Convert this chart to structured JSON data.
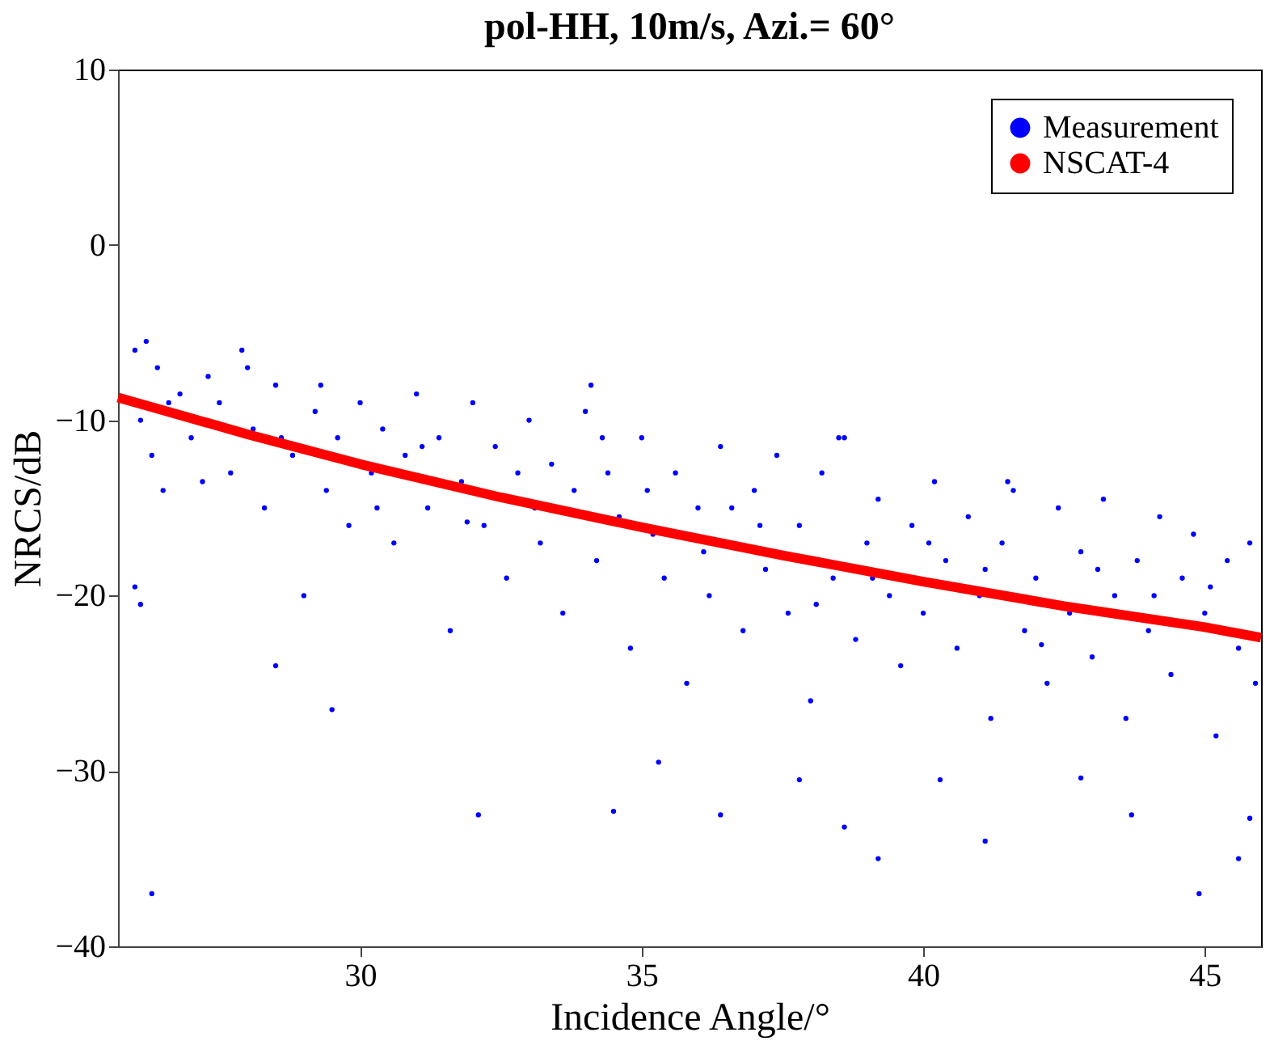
{
  "chart_data": {
    "type": "scatter",
    "title": "pol-HH,  10m/s,  Azi.= 60°",
    "xlabel": "Incidence Angle/°",
    "ylabel": "NRCS/dB",
    "xlim": [
      25.7,
      46
    ],
    "ylim": [
      -40,
      10
    ],
    "xticks": [
      30,
      35,
      40,
      45
    ],
    "yticks": [
      -40,
      -30,
      -20,
      -10,
      0,
      10
    ],
    "grid": false,
    "legend": "top right",
    "series": [
      {
        "name": "Measurement",
        "marker": "circle",
        "color": "#0000ff",
        "x": [
          26.0,
          26.2,
          26.4,
          26.1,
          26.3,
          26.5,
          26.8,
          27.0,
          27.3,
          27.5,
          27.7,
          27.9,
          28.1,
          28.3,
          28.5,
          28.8,
          29.0,
          29.2,
          29.4,
          29.6,
          29.8,
          30.0,
          30.2,
          30.4,
          30.6,
          30.8,
          31.0,
          31.2,
          31.4,
          31.6,
          31.8,
          32.0,
          32.2,
          32.4,
          32.6,
          32.8,
          33.0,
          33.2,
          33.4,
          33.6,
          33.8,
          34.0,
          34.2,
          34.4,
          34.6,
          34.8,
          35.0,
          35.2,
          35.4,
          35.6,
          35.8,
          36.0,
          36.2,
          36.4,
          36.6,
          36.8,
          37.0,
          37.2,
          37.4,
          37.6,
          37.8,
          38.0,
          38.2,
          38.4,
          38.6,
          38.8,
          39.0,
          39.2,
          39.4,
          39.6,
          39.8,
          40.0,
          40.2,
          40.4,
          40.6,
          40.8,
          41.0,
          41.2,
          41.4,
          41.6,
          41.8,
          42.0,
          42.2,
          42.4,
          42.6,
          42.8,
          43.0,
          43.2,
          43.4,
          43.6,
          43.8,
          44.0,
          44.2,
          44.4,
          44.6,
          44.8,
          45.0,
          45.2,
          45.4,
          45.6,
          45.8,
          45.9,
          26.6,
          27.2,
          28.0,
          28.6,
          29.3,
          30.3,
          31.1,
          31.9,
          33.1,
          34.3,
          35.1,
          36.1,
          37.1,
          38.1,
          39.1,
          40.1,
          41.1,
          42.1,
          43.1,
          44.1,
          45.1,
          34.1,
          38.5,
          41.5,
          26.3,
          26.0,
          26.1,
          28.5,
          29.5,
          32.1,
          34.5,
          35.3,
          36.4,
          39.2,
          41.1,
          44.9,
          45.6,
          45.8,
          43.7,
          38.6,
          37.8,
          40.3,
          42.8
        ],
        "values": [
          -6,
          -5.5,
          -7,
          -10,
          -12,
          -14,
          -8.5,
          -11,
          -7.5,
          -9,
          -13,
          -6,
          -10.5,
          -15,
          -8,
          -12,
          -20,
          -9.5,
          -14,
          -11,
          -16,
          -9,
          -13,
          -10.5,
          -17,
          -12,
          -8.5,
          -15,
          -11,
          -22,
          -13.5,
          -9,
          -16,
          -11.5,
          -19,
          -13,
          -10,
          -17,
          -12.5,
          -21,
          -14,
          -9.5,
          -18,
          -13,
          -15.5,
          -23,
          -11,
          -16.5,
          -19,
          -13,
          -25,
          -15,
          -20,
          -11.5,
          -15,
          -22,
          -14,
          -18.5,
          -12,
          -21,
          -16,
          -26,
          -13,
          -19,
          -11,
          -22.5,
          -17,
          -14.5,
          -20,
          -24,
          -16,
          -21,
          -13.5,
          -18,
          -23,
          -15.5,
          -20,
          -27,
          -17,
          -14,
          -22,
          -19,
          -25,
          -15,
          -21,
          -17.5,
          -23.5,
          -14.5,
          -20,
          -27,
          -18,
          -22,
          -15.5,
          -24.5,
          -19,
          -16.5,
          -21,
          -28,
          -18,
          -23,
          -17,
          -25,
          -9,
          -13.5,
          -7,
          -11,
          -8,
          -15,
          -11.5,
          -15.8,
          -15,
          -11,
          -14,
          -17.5,
          -16,
          -20.5,
          -19,
          -17,
          -18.5,
          -22.8,
          -18.5,
          -20,
          -19.5,
          -8,
          -11,
          -13.5,
          -37,
          -19.5,
          -20.5,
          -24,
          -26.5,
          -32.5,
          -32.3,
          -29.5,
          -32.5,
          -35,
          -34,
          -37,
          -35,
          -32.7,
          -32.5,
          -33.2,
          -30.5,
          -30.5,
          -30.4
        ]
      },
      {
        "name": "NSCAT-4",
        "type": "line",
        "marker": "none",
        "line_style": "solid",
        "color": "#ff0000",
        "x": [
          25.7,
          28,
          30,
          32.5,
          35,
          37.5,
          40,
          42.5,
          45,
          46
        ],
        "values": [
          -8.7,
          -10.8,
          -12.5,
          -14.4,
          -16.1,
          -17.7,
          -19.2,
          -20.6,
          -21.8,
          -22.4
        ]
      }
    ]
  }
}
